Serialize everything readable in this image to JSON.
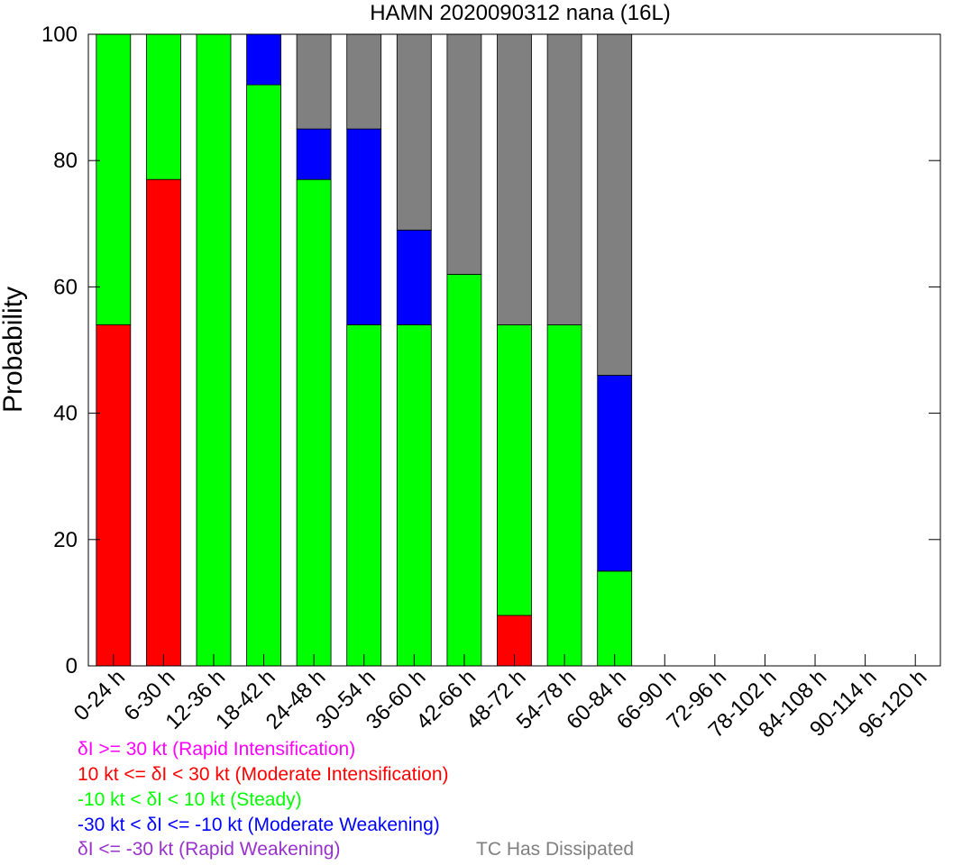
{
  "chart_data": {
    "type": "bar",
    "stacked": true,
    "title": "HAMN 2020090312 nana (16L)",
    "xlabel": "",
    "ylabel": "Probability",
    "ylim": [
      0,
      100
    ],
    "yticks": [
      0,
      20,
      40,
      60,
      80,
      100
    ],
    "grid": false,
    "categories": [
      "0-24 h",
      "6-30 h",
      "12-36 h",
      "18-42 h",
      "24-48 h",
      "30-54 h",
      "36-60 h",
      "42-66 h",
      "48-72 h",
      "54-78 h",
      "60-84 h",
      "66-90 h",
      "72-96 h",
      "78-102 h",
      "84-108 h",
      "90-114 h",
      "96-120 h"
    ],
    "series": [
      {
        "key": "ri",
        "color": "#ff00ff",
        "values": [
          0,
          0,
          0,
          0,
          0,
          0,
          0,
          0,
          0,
          0,
          0,
          0,
          0,
          0,
          0,
          0,
          0
        ]
      },
      {
        "key": "mi",
        "color": "#ff0000",
        "values": [
          54,
          77,
          0,
          0,
          0,
          0,
          0,
          0,
          8,
          0,
          0,
          0,
          0,
          0,
          0,
          0,
          0
        ]
      },
      {
        "key": "steady",
        "color": "#00ff00",
        "values": [
          46,
          23,
          100,
          92,
          77,
          54,
          54,
          62,
          46,
          54,
          15,
          0,
          0,
          0,
          0,
          0,
          0
        ]
      },
      {
        "key": "mw",
        "color": "#0000ff",
        "values": [
          0,
          0,
          0,
          8,
          8,
          31,
          15,
          0,
          0,
          0,
          31,
          0,
          0,
          0,
          0,
          0,
          0
        ]
      },
      {
        "key": "rw",
        "color": "#9932cc",
        "values": [
          0,
          0,
          0,
          0,
          0,
          0,
          0,
          0,
          0,
          0,
          0,
          0,
          0,
          0,
          0,
          0,
          0
        ]
      },
      {
        "key": "dissipated",
        "color": "#808080",
        "values": [
          0,
          0,
          0,
          0,
          15,
          15,
          31,
          38,
          46,
          46,
          54,
          0,
          0,
          0,
          0,
          0,
          0
        ]
      }
    ],
    "legend": {
      "placement": "bottom-left",
      "entries": [
        {
          "label": "δI >= 30 kt (Rapid Intensification)",
          "color": "#ff00ff"
        },
        {
          "label": "10 kt <= δI < 30 kt (Moderate Intensification)",
          "color": "#ff0000"
        },
        {
          "label": "-10 kt < δI < 10 kt (Steady)",
          "color": "#00ff00"
        },
        {
          "label": "-30 kt < δI <= -10 kt (Moderate Weakening)",
          "color": "#0000ff"
        },
        {
          "label": "δI <= -30 kt (Rapid Weakening)",
          "color": "#9932cc"
        },
        {
          "label": "TC Has Dissipated",
          "color": "#808080"
        }
      ]
    }
  }
}
